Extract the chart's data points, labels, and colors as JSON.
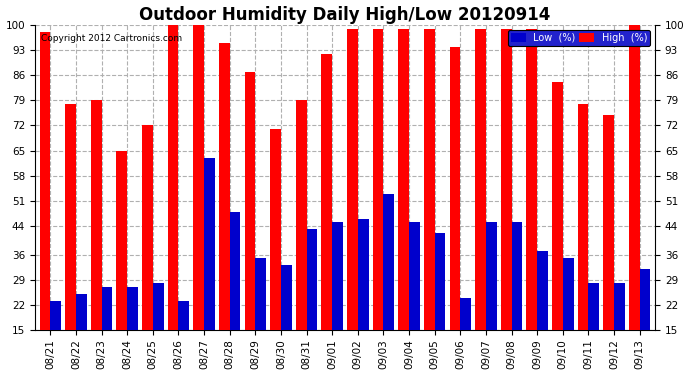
{
  "title": "Outdoor Humidity Daily High/Low 20120914",
  "copyright": "Copyright 2012 Cartronics.com",
  "dates": [
    "08/21",
    "08/22",
    "08/23",
    "08/24",
    "08/25",
    "08/26",
    "08/27",
    "08/28",
    "08/29",
    "08/30",
    "08/31",
    "09/01",
    "09/02",
    "09/03",
    "09/04",
    "09/05",
    "09/06",
    "09/07",
    "09/08",
    "09/09",
    "09/10",
    "09/11",
    "09/12",
    "09/13"
  ],
  "high": [
    98,
    78,
    79,
    65,
    72,
    100,
    100,
    95,
    87,
    71,
    79,
    92,
    99,
    99,
    99,
    99,
    94,
    99,
    99,
    99,
    84,
    78,
    75,
    100
  ],
  "low": [
    23,
    25,
    27,
    27,
    28,
    23,
    63,
    48,
    35,
    33,
    43,
    45,
    46,
    53,
    45,
    42,
    24,
    45,
    45,
    37,
    35,
    28,
    28,
    32
  ],
  "high_color": "#ff0000",
  "low_color": "#0000cc",
  "bg_color": "#ffffff",
  "plot_bg_color": "#ffffff",
  "grid_color": "#b0b0b0",
  "yticks": [
    15,
    22,
    29,
    36,
    44,
    51,
    58,
    65,
    72,
    79,
    86,
    93,
    100
  ],
  "ylim": [
    15,
    100
  ],
  "bar_width": 0.42,
  "title_fontsize": 12,
  "tick_fontsize": 7.5,
  "legend_low_label": "Low  (%)",
  "legend_high_label": "High  (%)"
}
